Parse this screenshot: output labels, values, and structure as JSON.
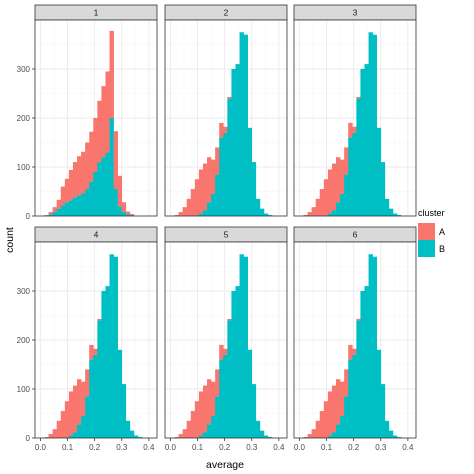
{
  "chart_data": {
    "type": "bar",
    "facet_labels": [
      "1",
      "2",
      "3",
      "4",
      "5",
      "6"
    ],
    "xlabel": "average",
    "ylabel": "count",
    "xlim": [
      -0.02,
      0.43
    ],
    "ylim": [
      0,
      400
    ],
    "x_ticks": [
      0.0,
      0.1,
      0.2,
      0.3,
      0.4
    ],
    "x_tick_labels": [
      "0.0",
      "0.1",
      "0.2",
      "0.3",
      "0.4"
    ],
    "y_ticks": [
      0,
      100,
      200,
      300
    ],
    "y_tick_labels": [
      "0",
      "100",
      "200",
      "300"
    ],
    "bin_width": 0.015,
    "bin_starts": [
      0.0,
      0.015,
      0.03,
      0.045,
      0.06,
      0.075,
      0.09,
      0.105,
      0.12,
      0.135,
      0.15,
      0.165,
      0.18,
      0.195,
      0.21,
      0.225,
      0.24,
      0.255,
      0.27,
      0.285,
      0.3,
      0.315,
      0.33,
      0.345,
      0.36,
      0.375,
      0.39,
      0.405
    ],
    "position": "stack",
    "grid": true,
    "legend": {
      "title": "cluster",
      "position": "right",
      "entries": [
        {
          "label": "A",
          "color": "#F8766D"
        },
        {
          "label": "B",
          "color": "#00BFC4"
        }
      ]
    },
    "panels": [
      {
        "label": "1",
        "series": [
          {
            "name": "A",
            "values": [
              0,
              2,
              5,
              10,
              18,
              38,
              48,
              62,
              72,
              80,
              85,
              95,
              102,
              110,
              125,
              145,
              165,
              178,
              118,
              62,
              20,
              6,
              2,
              0,
              0,
              0,
              0,
              0
            ]
          },
          {
            "name": "B",
            "values": [
              0,
              0,
              3,
              8,
              15,
              22,
              28,
              32,
              38,
              42,
              46,
              55,
              70,
              90,
              110,
              120,
              130,
              200,
              55,
              20,
              8,
              3,
              2,
              0,
              0,
              0,
              0,
              0
            ]
          }
        ]
      },
      {
        "label": "2",
        "series": [
          {
            "name": "A",
            "values": [
              0,
              2,
              8,
              18,
              35,
              55,
              75,
              90,
              95,
              92,
              70,
              55,
              30,
              12,
              3,
              0,
              0,
              0,
              0,
              0,
              0,
              0,
              0,
              0,
              0,
              0,
              0,
              0
            ]
          },
          {
            "name": "B",
            "values": [
              0,
              0,
              0,
              0,
              0,
              0,
              0,
              5,
              12,
              28,
              45,
              85,
              160,
              170,
              240,
              300,
              310,
              375,
              370,
              180,
              110,
              35,
              15,
              5,
              2,
              0,
              0,
              0
            ]
          }
        ]
      },
      {
        "label": "3",
        "series": [
          {
            "name": "A",
            "values": [
              0,
              2,
              8,
              18,
              35,
              55,
              75,
              90,
              95,
              92,
              70,
              55,
              30,
              12,
              3,
              0,
              0,
              0,
              0,
              0,
              0,
              0,
              0,
              0,
              0,
              0,
              0,
              0
            ]
          },
          {
            "name": "B",
            "values": [
              0,
              0,
              0,
              0,
              0,
              0,
              0,
              5,
              12,
              28,
              45,
              85,
              160,
              170,
              240,
              300,
              310,
              375,
              370,
              180,
              110,
              35,
              15,
              5,
              2,
              0,
              0,
              0
            ]
          }
        ]
      },
      {
        "label": "4",
        "series": [
          {
            "name": "A",
            "values": [
              0,
              2,
              8,
              18,
              35,
              55,
              75,
              90,
              95,
              92,
              70,
              55,
              30,
              12,
              3,
              0,
              0,
              0,
              0,
              0,
              0,
              0,
              0,
              0,
              0,
              0,
              0,
              0
            ]
          },
          {
            "name": "B",
            "values": [
              0,
              0,
              0,
              0,
              0,
              0,
              0,
              5,
              12,
              28,
              45,
              85,
              160,
              170,
              240,
              300,
              310,
              375,
              370,
              180,
              110,
              35,
              15,
              5,
              2,
              0,
              0,
              0
            ]
          }
        ]
      },
      {
        "label": "5",
        "series": [
          {
            "name": "A",
            "values": [
              0,
              2,
              8,
              18,
              35,
              55,
              75,
              90,
              95,
              92,
              70,
              55,
              30,
              12,
              3,
              0,
              0,
              0,
              0,
              0,
              0,
              0,
              0,
              0,
              0,
              0,
              0,
              0
            ]
          },
          {
            "name": "B",
            "values": [
              0,
              0,
              0,
              0,
              0,
              0,
              0,
              5,
              12,
              28,
              45,
              85,
              160,
              170,
              240,
              300,
              310,
              375,
              370,
              180,
              110,
              35,
              15,
              5,
              2,
              0,
              0,
              0
            ]
          }
        ]
      },
      {
        "label": "6",
        "series": [
          {
            "name": "A",
            "values": [
              0,
              2,
              8,
              18,
              35,
              55,
              75,
              90,
              95,
              92,
              70,
              55,
              30,
              12,
              3,
              0,
              0,
              0,
              0,
              0,
              0,
              0,
              0,
              0,
              0,
              0,
              0,
              0
            ]
          },
          {
            "name": "B",
            "values": [
              0,
              0,
              0,
              0,
              0,
              0,
              0,
              5,
              12,
              28,
              45,
              85,
              160,
              170,
              240,
              300,
              310,
              375,
              370,
              180,
              110,
              35,
              15,
              5,
              2,
              0,
              0,
              0
            ]
          }
        ]
      }
    ]
  },
  "colors": {
    "panel_background": "#ffffff",
    "panel_border": "#333333",
    "grid_major": "#ebebeb",
    "grid_minor": "#f5f5f5",
    "strip_background": "#d9d9d9"
  }
}
